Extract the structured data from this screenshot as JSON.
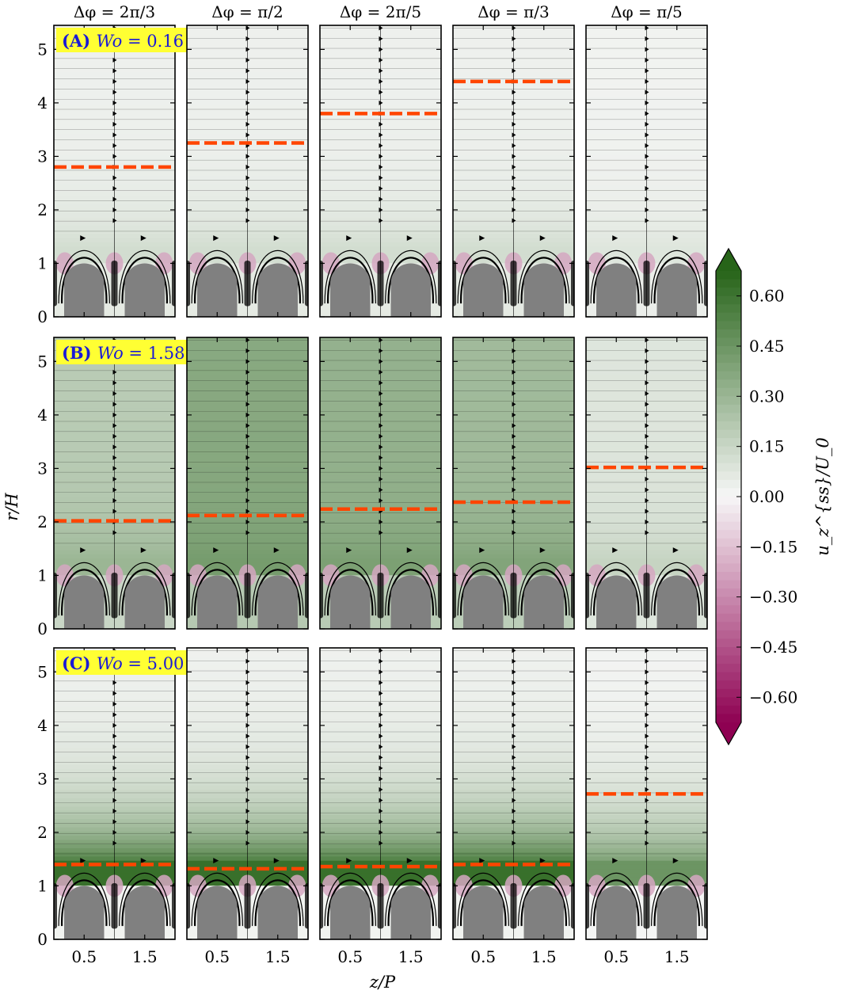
{
  "chart_data": {
    "type": "heatmap",
    "title": "",
    "xlabel": "z/P",
    "ylabel": "r/H",
    "xlim": [
      0,
      2
    ],
    "ylim": [
      0,
      5.45
    ],
    "xticks": [
      0.5,
      1.5
    ],
    "xtick_labels": [
      "0.5",
      "1.5"
    ],
    "yticks": [
      0,
      1,
      2,
      3,
      4,
      5
    ],
    "ytick_labels": [
      "0",
      "1",
      "2",
      "3",
      "4",
      "5"
    ],
    "columns": [
      "Δφ = 2π/3",
      "Δφ = π/2",
      "Δφ = 2π/5",
      "Δφ = π/3",
      "Δφ = π/5"
    ],
    "rows": [
      {
        "label_id": "(A)",
        "label_var": "Wo",
        "label_eq": " = 0.16",
        "wo": 0.16,
        "dashed_r": [
          2.8,
          3.25,
          3.8,
          4.4,
          null
        ],
        "bulk_u": [
          0.03,
          0.03,
          0.03,
          0.03,
          0.02
        ],
        "near_u": [
          0.12,
          0.12,
          0.12,
          0.12,
          0.08
        ]
      },
      {
        "label_id": "(B)",
        "label_var": "Wo",
        "label_eq": " = 1.58",
        "wo": 1.58,
        "dashed_r": [
          2.02,
          2.12,
          2.24,
          2.37,
          3.02
        ],
        "bulk_u": [
          0.2,
          0.36,
          0.32,
          0.28,
          0.08
        ],
        "near_u": [
          0.3,
          0.42,
          0.4,
          0.38,
          0.16
        ]
      },
      {
        "label_id": "(C)",
        "label_var": "Wo",
        "label_eq": " = 5.00",
        "wo": 5.0,
        "dashed_r": [
          1.4,
          1.32,
          1.36,
          1.4,
          2.72
        ],
        "bulk_u": [
          0.02,
          0.02,
          0.02,
          0.02,
          0.01
        ],
        "near_u": [
          0.62,
          0.62,
          0.62,
          0.62,
          0.45
        ]
      }
    ],
    "colorbar": {
      "label": "u_z^{ss}/U_0",
      "min": -0.675,
      "max": 0.675,
      "ticks": [
        0.6,
        0.45,
        0.3,
        0.15,
        0.0,
        -0.15,
        -0.3,
        -0.45,
        -0.6
      ],
      "tick_labels": [
        "0.60",
        "0.45",
        "0.30",
        "0.15",
        "0.00",
        "−0.15",
        "−0.30",
        "−0.45",
        "−0.60"
      ]
    },
    "colors": {
      "dashed": "#ff4500",
      "obstacle": "#808080",
      "label_box": "#ffff33",
      "label_text": "#1a1ad6",
      "neg_dark": "#8e0152",
      "neutral": "#f7f7f7",
      "pos_dark": "#276419"
    }
  }
}
